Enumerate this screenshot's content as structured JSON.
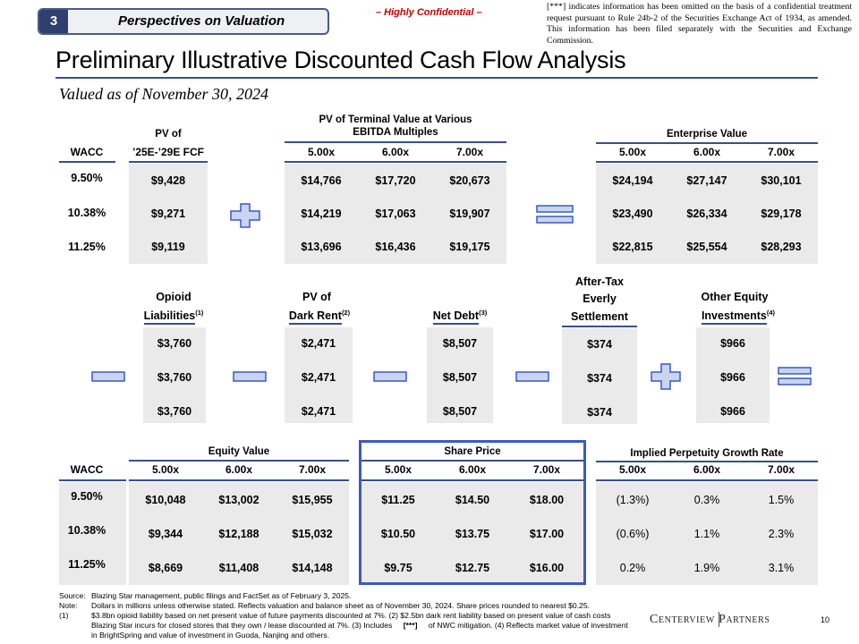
{
  "header": {
    "section_number": "3",
    "section_title": "Perspectives on Valuation",
    "confidential": "– Highly Confidential –",
    "omit_note": "[***] indicates information has been omitted on the basis of a confidential treatment request pursuant to Rule 24b-2 of the Securities Exchange Act of 1934, as amended. This information has been filed separately with the Securities and Exchange Commission.",
    "title": "Preliminary Illustrative Discounted Cash Flow Analysis",
    "subtitle": "Valued as of November 30, 2024"
  },
  "top": {
    "wacc_label": "WACC",
    "wacc": [
      "9.50%",
      "10.38%",
      "11.25%"
    ],
    "pv_fcf_header_1": "PV of",
    "pv_fcf_header_2": "’25E-’29E FCF",
    "pv_fcf": [
      "$9,428",
      "$9,271",
      "$9,119"
    ],
    "tv_header_1": "PV of Terminal Value at Various",
    "tv_header_2": "EBITDA Multiples",
    "ev_header": "Enterprise Value",
    "multiples": [
      "5.00x",
      "6.00x",
      "7.00x"
    ],
    "tv_rows": [
      [
        "$14,766",
        "$17,720",
        "$20,673"
      ],
      [
        "$14,219",
        "$17,063",
        "$19,907"
      ],
      [
        "$13,696",
        "$16,436",
        "$19,175"
      ]
    ],
    "ev_rows": [
      [
        "$24,194",
        "$27,147",
        "$30,101"
      ],
      [
        "$23,490",
        "$26,334",
        "$29,178"
      ],
      [
        "$22,815",
        "$25,554",
        "$28,293"
      ]
    ]
  },
  "middle": {
    "opioid_1": "Opioid",
    "opioid_2": "Liabilities",
    "opioid_note": "(1)",
    "opioid": [
      "$3,760",
      "$3,760",
      "$3,760"
    ],
    "dark_1": "PV of",
    "dark_2": "Dark Rent",
    "dark_note": "(2)",
    "dark": [
      "$2,471",
      "$2,471",
      "$2,471"
    ],
    "debt_label": "Net Debt",
    "debt_note": "(3)",
    "debt": [
      "$8,507",
      "$8,507",
      "$8,507"
    ],
    "settle_1": "After-Tax",
    "settle_2": "Everly",
    "settle_3": "Settlement",
    "settle": [
      "$374",
      "$374",
      "$374"
    ],
    "other_1": "Other Equity",
    "other_2": "Investments",
    "other_note": "(4)",
    "other": [
      "$966",
      "$966",
      "$966"
    ]
  },
  "bottom": {
    "wacc_label": "WACC",
    "wacc": [
      "9.50%",
      "10.38%",
      "11.25%"
    ],
    "equity_header": "Equity Value",
    "share_header": "Share Price",
    "growth_header": "Implied Perpetuity Growth Rate",
    "multiples": [
      "5.00x",
      "6.00x",
      "7.00x"
    ],
    "equity_rows": [
      [
        "$10,048",
        "$13,002",
        "$15,955"
      ],
      [
        "$9,344",
        "$12,188",
        "$15,032"
      ],
      [
        "$8,669",
        "$11,408",
        "$14,148"
      ]
    ],
    "share_rows": [
      [
        "$11.25",
        "$14.50",
        "$18.00"
      ],
      [
        "$10.50",
        "$13.75",
        "$17.00"
      ],
      [
        "$9.75",
        "$12.75",
        "$16.00"
      ]
    ],
    "growth_rows": [
      [
        "(1.3%)",
        "0.3%",
        "1.5%"
      ],
      [
        "(0.6%)",
        "1.1%",
        "2.3%"
      ],
      [
        "0.2%",
        "1.9%",
        "3.1%"
      ]
    ]
  },
  "footer": {
    "source_label": "Source:",
    "source": "Blazing Star management, public filings and FactSet as of February 3, 2025.",
    "note_label": "Note:",
    "note": "Dollars in millions unless otherwise stated. Reflects valuation and balance sheet as of November 30, 2024. Share prices rounded to nearest $0.25.",
    "fn_label": "(1)",
    "fn_line1": "$3.8bn opioid liability based on net present value of future payments discounted at 7%. (2) $2.5bn dark rent liability based on present value of cash costs",
    "fn_line2a": "Blazing Star incurs for closed stores that they own / lease discounted at 7%. (3) Includes",
    "fn_redact": "[***]",
    "fn_line2b": "of NWC mitigation. (4) Reflects market value of investment",
    "fn_line3": "in BrightSpring and value of investment in Guoda, Nanjing and others.",
    "logo": "Centerview Partners",
    "page": "10"
  },
  "colors": {
    "navy": "#2e3f6f",
    "rule": "#3a4e8c",
    "highlight": "#3a5ac6",
    "panel": "#eaeaea",
    "confidential": "#c00000"
  },
  "icons": [
    "plus-icon",
    "equals-icon",
    "minus-icon"
  ]
}
